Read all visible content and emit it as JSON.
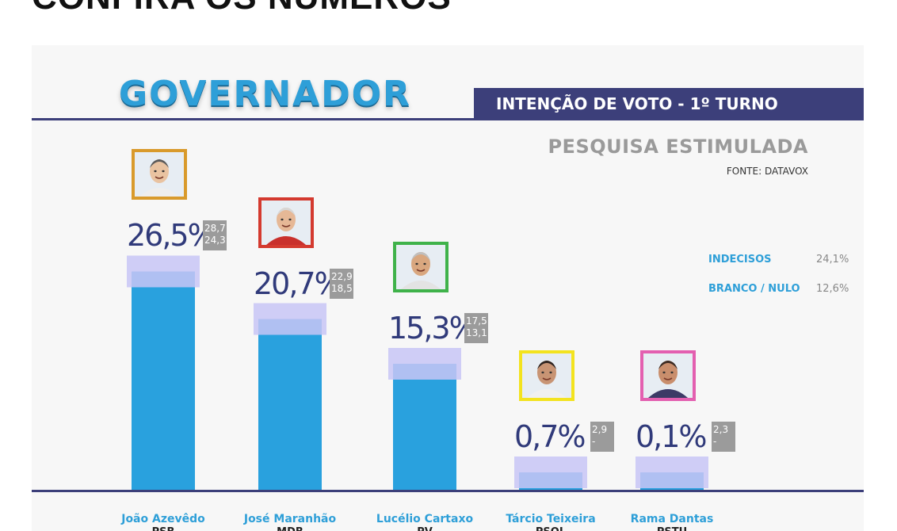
{
  "page": {
    "headline": "CONFIRA OS NÚMEROS"
  },
  "header": {
    "title": "GOVERNADOR",
    "banner": "INTENÇÃO DE VOTO - 1º TURNO",
    "subtitle": "PESQUISA ESTIMULADA",
    "source": "FONTE: DATAVOX"
  },
  "side_stats": [
    {
      "label": "INDECISOS",
      "value": "24,1%"
    },
    {
      "label": "BRANCO / NULO",
      "value": "12,6%"
    }
  ],
  "chart_data": {
    "type": "bar",
    "title": "GOVERNADOR",
    "subtitle": "INTENÇÃO DE VOTO - 1º TURNO",
    "categories": [
      "João Azevêdo",
      "José Maranhão",
      "Lucélio Cartaxo",
      "Tárcio Teixeira",
      "Rama Dantas"
    ],
    "parties": [
      "PSB",
      "MDB",
      "PV",
      "PSOL",
      "PSTU"
    ],
    "values": [
      26.5,
      20.7,
      15.3,
      0.7,
      0.1
    ],
    "value_labels": [
      "26,5%",
      "20,7%",
      "15,3%",
      "0,7%",
      "0,1%"
    ],
    "range_high": [
      "28,7",
      "22,9",
      "17,5",
      "2,9",
      "2,3"
    ],
    "range_low": [
      "24,3",
      "18,5",
      "13,1",
      "-",
      "-"
    ],
    "portrait_border_colors": [
      "#d99a2b",
      "#d43a2f",
      "#3fb24a",
      "#f3e31f",
      "#e35fb0"
    ],
    "bar_color": "#29a1de",
    "band_color": "#c8c6f6",
    "grid": false,
    "legend": false
  }
}
